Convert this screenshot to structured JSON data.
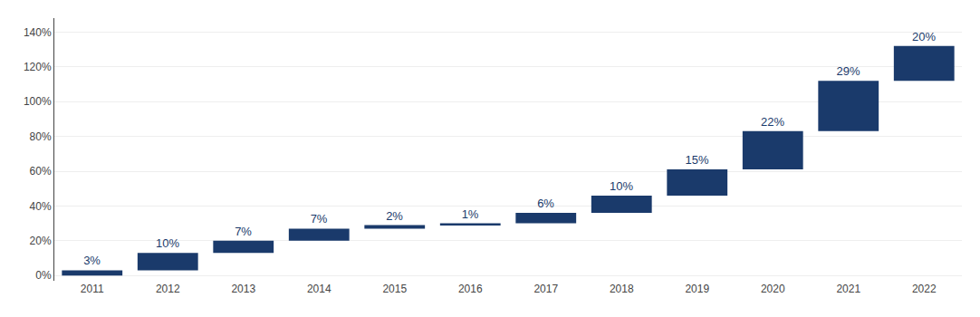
{
  "chart_data": {
    "type": "waterfall",
    "categories": [
      "2011",
      "2012",
      "2013",
      "2014",
      "2015",
      "2016",
      "2017",
      "2018",
      "2019",
      "2020",
      "2021",
      "2022"
    ],
    "values": [
      3,
      10,
      7,
      7,
      2,
      1,
      6,
      10,
      15,
      22,
      29,
      20
    ],
    "value_labels": [
      "3%",
      "10%",
      "7%",
      "7%",
      "2%",
      "1%",
      "6%",
      "10%",
      "15%",
      "22%",
      "29%",
      "20%"
    ],
    "data_labels": true,
    "color": "#1a3a6b",
    "ylim": [
      -3,
      148
    ],
    "yticks": [
      {
        "value": 0,
        "label": "0%"
      },
      {
        "value": 20,
        "label": "20%"
      },
      {
        "value": 40,
        "label": "40%"
      },
      {
        "value": 60,
        "label": "60%"
      },
      {
        "value": 80,
        "label": "80%"
      },
      {
        "value": 100,
        "label": "100%"
      },
      {
        "value": 120,
        "label": "120%"
      },
      {
        "value": 140,
        "label": "140%"
      }
    ],
    "grid": true
  }
}
